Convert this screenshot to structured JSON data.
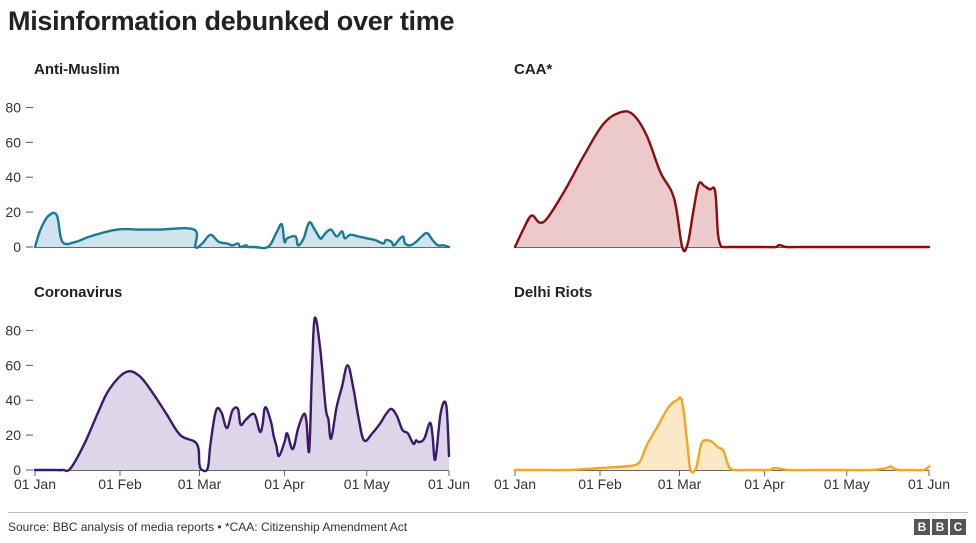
{
  "title": "Misinformation debunked over time",
  "footer": {
    "source": "Source: BBC analysis of media reports • *CAA: Citizenship Amendment Act",
    "logo": [
      "B",
      "B",
      "C"
    ]
  },
  "chart_data": [
    {
      "type": "area",
      "title": "Anti-Muslim",
      "color": "#1a7a96",
      "fill": "#cfe4ec",
      "ylim": [
        0,
        90
      ],
      "yticks": [
        0,
        20,
        40,
        60,
        80
      ],
      "xticks": [],
      "x": [
        0,
        2,
        5,
        8,
        10,
        15,
        20,
        30,
        38,
        45,
        58,
        58.5,
        61,
        64,
        67,
        70,
        72,
        74,
        75,
        77,
        78,
        80,
        85,
        88,
        90,
        91,
        92,
        95,
        96,
        98,
        100,
        102,
        104,
        105,
        106,
        108,
        110,
        112,
        113,
        115,
        118,
        121,
        124,
        127,
        128,
        130,
        131,
        134,
        135,
        137,
        139,
        141,
        143,
        145,
        147,
        149,
        151
      ],
      "values": [
        0,
        10,
        18,
        18,
        3,
        3,
        6,
        10,
        10,
        10,
        10,
        0,
        2,
        7,
        3,
        2,
        1,
        2,
        0,
        1,
        0,
        0,
        0,
        8,
        13,
        3,
        5,
        6,
        1,
        5,
        14,
        10,
        5,
        6,
        8,
        10,
        6,
        9,
        5,
        7,
        6,
        5,
        4,
        2,
        4,
        3,
        1,
        6,
        2,
        1,
        3,
        6,
        8,
        4,
        1,
        1,
        0
      ]
    },
    {
      "type": "area",
      "title": "CAA*",
      "color": "#8b0d0d",
      "fill": "#ecc9cb",
      "ylim": [
        0,
        90
      ],
      "yticks": [],
      "xticks": [],
      "x": [
        0,
        3,
        6,
        9,
        12,
        18,
        25,
        32,
        38,
        43,
        48,
        53,
        58,
        61,
        63,
        65,
        67,
        69,
        71,
        73,
        74,
        75,
        76,
        78,
        80,
        85,
        90,
        95,
        96,
        97,
        99,
        105,
        110,
        120,
        130,
        140,
        151
      ],
      "values": [
        0,
        10,
        18,
        14,
        17,
        32,
        52,
        70,
        77,
        76,
        64,
        43,
        28,
        0,
        2,
        20,
        36,
        35,
        33,
        32,
        8,
        1,
        0,
        0,
        0,
        0,
        0,
        0,
        1,
        1,
        0,
        0,
        0,
        0,
        0,
        0,
        0
      ]
    },
    {
      "type": "area",
      "title": "Coronavirus",
      "color": "#3c1a6b",
      "fill": "#ddd6e8",
      "ylim": [
        0,
        90
      ],
      "yticks": [
        0,
        20,
        40,
        60,
        80
      ],
      "xticks": [
        "01 Jan",
        "01 Feb",
        "01 Mar",
        "01 Apr",
        "01 May",
        "01 Jun"
      ],
      "x": [
        0,
        6,
        10,
        13,
        18,
        23,
        27,
        33,
        38,
        43,
        48,
        53,
        59,
        60,
        61,
        63,
        64,
        66,
        68,
        70,
        72,
        74,
        75,
        77,
        80,
        82,
        83,
        84,
        86,
        87,
        88,
        89,
        91,
        92,
        94,
        96,
        98,
        99,
        100,
        101,
        102,
        104,
        106,
        107,
        108,
        110,
        112,
        114,
        116,
        118,
        120,
        123,
        126,
        128,
        130,
        132,
        134,
        136,
        138,
        139,
        140,
        142,
        144,
        145,
        146,
        148,
        150,
        151
      ],
      "values": [
        0,
        0,
        0,
        1,
        15,
        33,
        46,
        56,
        54,
        44,
        32,
        20,
        15,
        3,
        0,
        1,
        15,
        34,
        33,
        24,
        34,
        35,
        26,
        29,
        32,
        22,
        26,
        36,
        28,
        20,
        14,
        8,
        16,
        21,
        12,
        24,
        32,
        28,
        11,
        55,
        87,
        70,
        36,
        29,
        18,
        36,
        48,
        60,
        48,
        30,
        17,
        21,
        27,
        32,
        35,
        31,
        23,
        21,
        15,
        17,
        16,
        18,
        27,
        20,
        6,
        33,
        37,
        8
      ]
    },
    {
      "type": "area",
      "title": "Delhi Riots",
      "color": "#f2a623",
      "fill": "#fbe8c6",
      "ylim": [
        0,
        90
      ],
      "yticks": [],
      "xticks": [
        "01 Jan",
        "01 Feb",
        "01 Mar",
        "01 Apr",
        "01 May",
        "01 Jun"
      ],
      "x": [
        0,
        10,
        20,
        30,
        40,
        44,
        46,
        48,
        52,
        56,
        59,
        61,
        63,
        64,
        66,
        68,
        70,
        72,
        74,
        76,
        78,
        80,
        85,
        90,
        93,
        94,
        96,
        100,
        110,
        120,
        130,
        135,
        137,
        138,
        140,
        145,
        149,
        151
      ],
      "values": [
        0,
        0,
        0,
        1,
        2,
        3,
        6,
        14,
        25,
        36,
        40,
        39,
        13,
        0,
        1,
        15,
        17,
        16,
        13,
        11,
        2,
        0,
        0,
        0,
        0,
        1,
        1,
        0,
        0,
        0,
        0,
        1,
        2,
        1,
        0,
        0,
        0,
        2
      ]
    }
  ]
}
